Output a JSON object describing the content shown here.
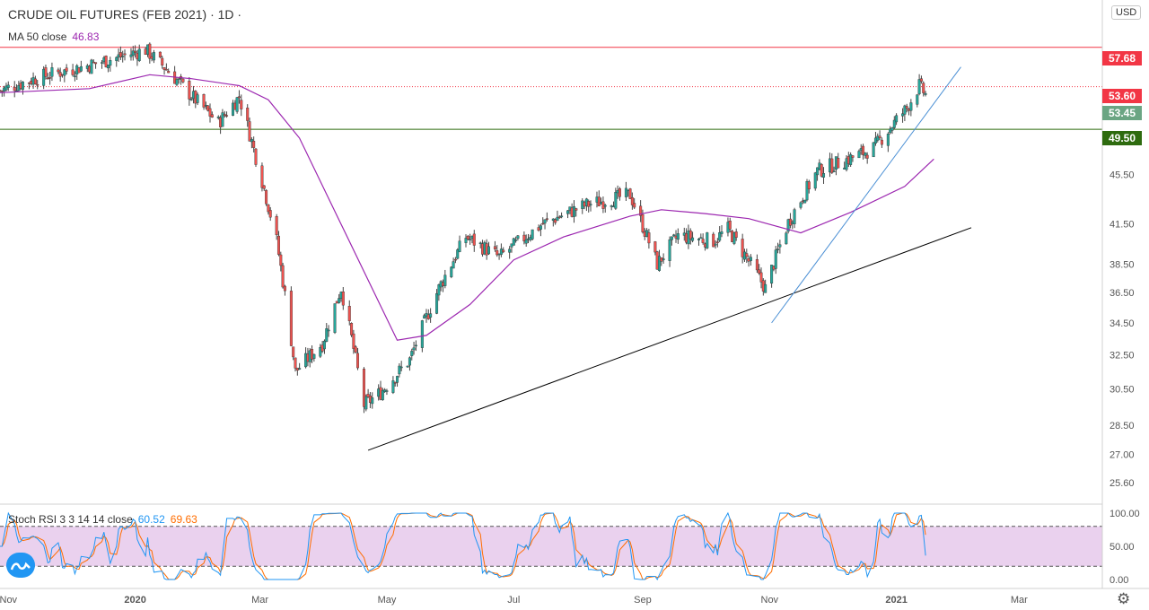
{
  "header": {
    "title": "CRUDE OIL FUTURES (FEB 2021)",
    "interval": "· 1D ·",
    "currency": "USD"
  },
  "indicators": {
    "ma": {
      "label": "MA 50 close",
      "value": "46.83",
      "color": "#9c27b0"
    },
    "stoch_rsi": {
      "label": "Stoch RSI 3 3 14 14 close",
      "k_value": "60.52",
      "d_value": "69.63",
      "k_color": "#2196f3",
      "d_color": "#ff6d00"
    }
  },
  "price_labels": [
    {
      "value": "57.68",
      "color": "#f23645"
    },
    {
      "value": "53.60",
      "color": "#f23645"
    },
    {
      "value": "53.45",
      "color": "#6ba583"
    },
    {
      "value": "49.50",
      "color": "#2e6b0f"
    }
  ],
  "chart_data": {
    "type": "candlestick",
    "x_ticks": [
      "Nov",
      "2020",
      "Mar",
      "May",
      "Jul",
      "Sep",
      "Nov",
      "2021",
      "Mar"
    ],
    "y_ticks": [
      "25.60",
      "27.00",
      "28.50",
      "30.50",
      "32.50",
      "34.50",
      "36.50",
      "38.50",
      "41.50",
      "45.50",
      "49.50",
      "53.45",
      "53.60",
      "57.68"
    ],
    "ylim": [
      24.6,
      63
    ],
    "x_range": [
      "2019-10-28",
      "2021-04-10"
    ],
    "up_color": "#26a69a",
    "down_color": "#ef5350",
    "close_anchors": [
      [
        "2019-10-28",
        53.2
      ],
      [
        "2019-11-15",
        54.5
      ],
      [
        "2019-12-10",
        55.8
      ],
      [
        "2020-01-06",
        57.4
      ],
      [
        "2020-01-15",
        55.6
      ],
      [
        "2020-01-28",
        52.7
      ],
      [
        "2020-02-10",
        50.1
      ],
      [
        "2020-02-20",
        52.6
      ],
      [
        "2020-02-28",
        47.0
      ],
      [
        "2020-03-09",
        40.2
      ],
      [
        "2020-03-18",
        31.5
      ],
      [
        "2020-03-31",
        33.2
      ],
      [
        "2020-04-09",
        36.8
      ],
      [
        "2020-04-20",
        29.6
      ],
      [
        "2020-04-28",
        30.3
      ],
      [
        "2020-05-12",
        32.2
      ],
      [
        "2020-05-26",
        36.8
      ],
      [
        "2020-06-08",
        40.5
      ],
      [
        "2020-06-24",
        39.0
      ],
      [
        "2020-07-15",
        41.5
      ],
      [
        "2020-08-05",
        43.0
      ],
      [
        "2020-08-26",
        43.8
      ],
      [
        "2020-09-08",
        38.5
      ],
      [
        "2020-09-18",
        40.6
      ],
      [
        "2020-10-05",
        40.2
      ],
      [
        "2020-10-12",
        41.1
      ],
      [
        "2020-10-30",
        36.8
      ],
      [
        "2020-11-10",
        41.6
      ],
      [
        "2020-11-24",
        45.8
      ],
      [
        "2020-12-10",
        46.9
      ],
      [
        "2020-12-21",
        47.8
      ],
      [
        "2021-01-06",
        51.5
      ],
      [
        "2021-01-12",
        53.7
      ],
      [
        "2021-01-15",
        52.8
      ]
    ],
    "ma50_close": [
      [
        "2019-10-28",
        53.0
      ],
      [
        "2019-12-10",
        53.4
      ],
      [
        "2020-01-08",
        54.8
      ],
      [
        "2020-01-28",
        54.4
      ],
      [
        "2020-02-20",
        53.7
      ],
      [
        "2020-03-05",
        52.3
      ],
      [
        "2020-03-20",
        48.7
      ],
      [
        "2020-04-08",
        41.8
      ],
      [
        "2020-05-06",
        33.4
      ],
      [
        "2020-05-20",
        33.7
      ],
      [
        "2020-06-10",
        35.7
      ],
      [
        "2020-07-01",
        38.8
      ],
      [
        "2020-07-25",
        40.5
      ],
      [
        "2020-08-26",
        42.1
      ],
      [
        "2020-09-10",
        42.6
      ],
      [
        "2020-10-01",
        42.3
      ],
      [
        "2020-10-22",
        41.9
      ],
      [
        "2020-11-16",
        40.8
      ],
      [
        "2020-12-10",
        42.4
      ],
      [
        "2021-01-05",
        44.5
      ],
      [
        "2021-01-19",
        46.83
      ]
    ],
    "horizontal_lines": [
      {
        "price": 57.68,
        "color": "#f23645",
        "style": "solid"
      },
      {
        "price": 53.6,
        "color": "#f23645",
        "style": "dotted"
      },
      {
        "price": 49.5,
        "color": "#2e6b0f",
        "style": "solid"
      }
    ],
    "trend_lines": [
      {
        "from": [
          "2020-04-22",
          27.2
        ],
        "to": [
          "2021-02-06",
          41.2
        ],
        "color": "#000000"
      },
      {
        "from": [
          "2020-11-02",
          34.5
        ],
        "to": [
          "2021-02-01",
          55.6
        ],
        "color": "#4a8fd4"
      }
    ],
    "stoch_rsi": {
      "ylim": [
        0,
        100
      ],
      "ticks": [
        "100.00",
        "50.00",
        "0.00"
      ],
      "band": [
        20,
        80
      ],
      "band_color": "#e1bee7"
    }
  }
}
